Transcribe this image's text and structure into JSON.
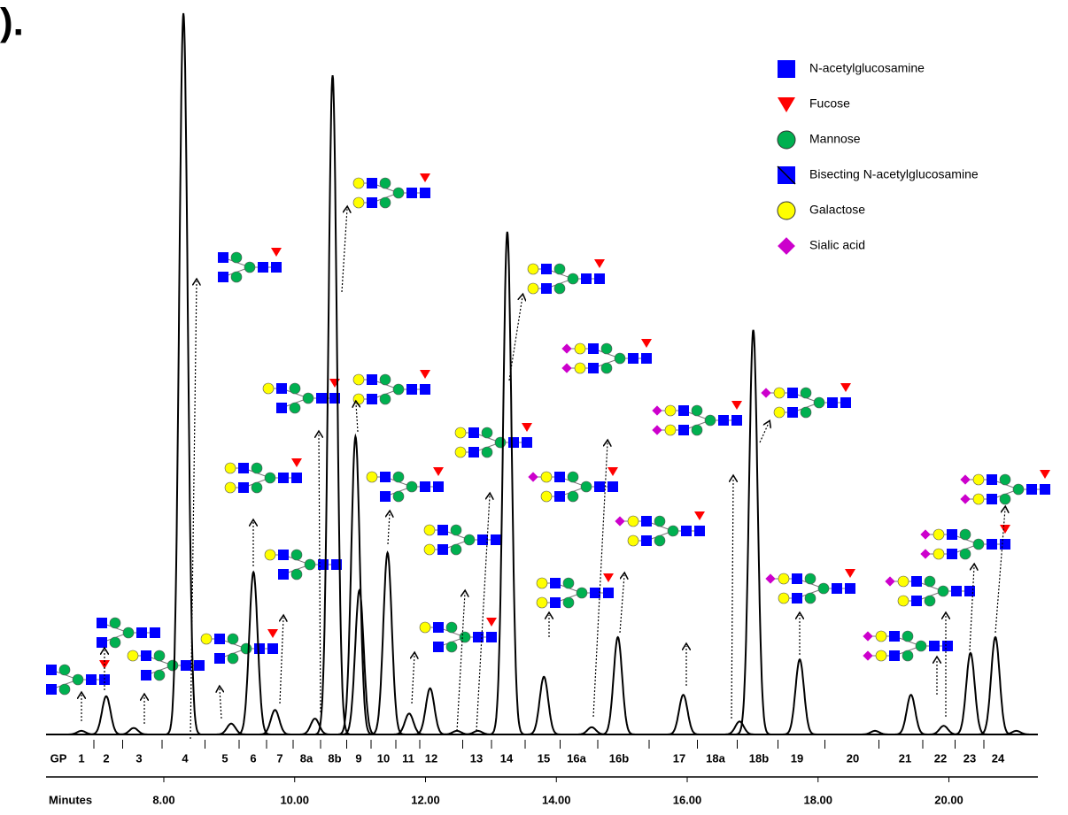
{
  "chart_data": {
    "type": "line",
    "panel_label": ").",
    "x_label": "Minutes",
    "peak_labels": [
      "GP",
      "1",
      "2",
      "3",
      "4",
      "5",
      "6",
      "7",
      "8a",
      "8b",
      "9",
      "10",
      "11",
      "12",
      "13",
      "14",
      "15",
      "16a",
      "16b",
      "17",
      "18a",
      "18b",
      "19",
      "20",
      "21",
      "22",
      "23",
      "24"
    ],
    "series": [
      {
        "color": "#000000",
        "x": [
          6.74,
          7.12,
          7.54,
          8.3,
          9.03,
          9.37,
          9.7,
          10.31,
          10.58,
          10.93,
          10.99,
          11.42,
          11.75,
          12.07,
          12.48,
          12.8,
          13.25,
          13.81,
          14.54,
          14.94,
          15.94,
          16.8,
          17.01,
          17.72,
          18.87,
          19.42,
          19.92,
          20.33,
          20.71,
          21.03
        ],
        "values": [
          0.5,
          5.3,
          0.9,
          100,
          1.5,
          22.5,
          3.4,
          2.2,
          91.4,
          41.3,
          20,
          25.2,
          2.9,
          6.4,
          0.5,
          0.5,
          69.7,
          8.0,
          1.0,
          13.5,
          5.5,
          1.8,
          56.1,
          10.4,
          0.5,
          5.5,
          1.2,
          11.3,
          13.5,
          0.5
        ]
      }
    ],
    "xlim": [
      6.2,
      21.36
    ],
    "ylim": [
      0,
      100
    ],
    "xticks": [
      {
        "value": 8,
        "label": "8.00"
      },
      {
        "value": 10,
        "label": "10.00"
      },
      {
        "value": 12,
        "label": "12.00"
      },
      {
        "value": 14,
        "label": "14.00"
      },
      {
        "value": 16,
        "label": "16.00"
      },
      {
        "value": 18,
        "label": "18.00"
      },
      {
        "value": 20,
        "label": "20.00"
      }
    ],
    "legend": [
      {
        "name": "N-acetylglucosamine",
        "color": "#0000ff"
      },
      {
        "name": "Fucose",
        "color": "#ff0000"
      },
      {
        "name": "Mannose",
        "color": "#00b050"
      },
      {
        "name": "Bisecting N-acetylglucosamine",
        "color": "#0000ff"
      },
      {
        "name": "Galactose",
        "color": "#ffff00"
      },
      {
        "name": "Sialic acid",
        "color": "#cc00cc"
      }
    ]
  }
}
